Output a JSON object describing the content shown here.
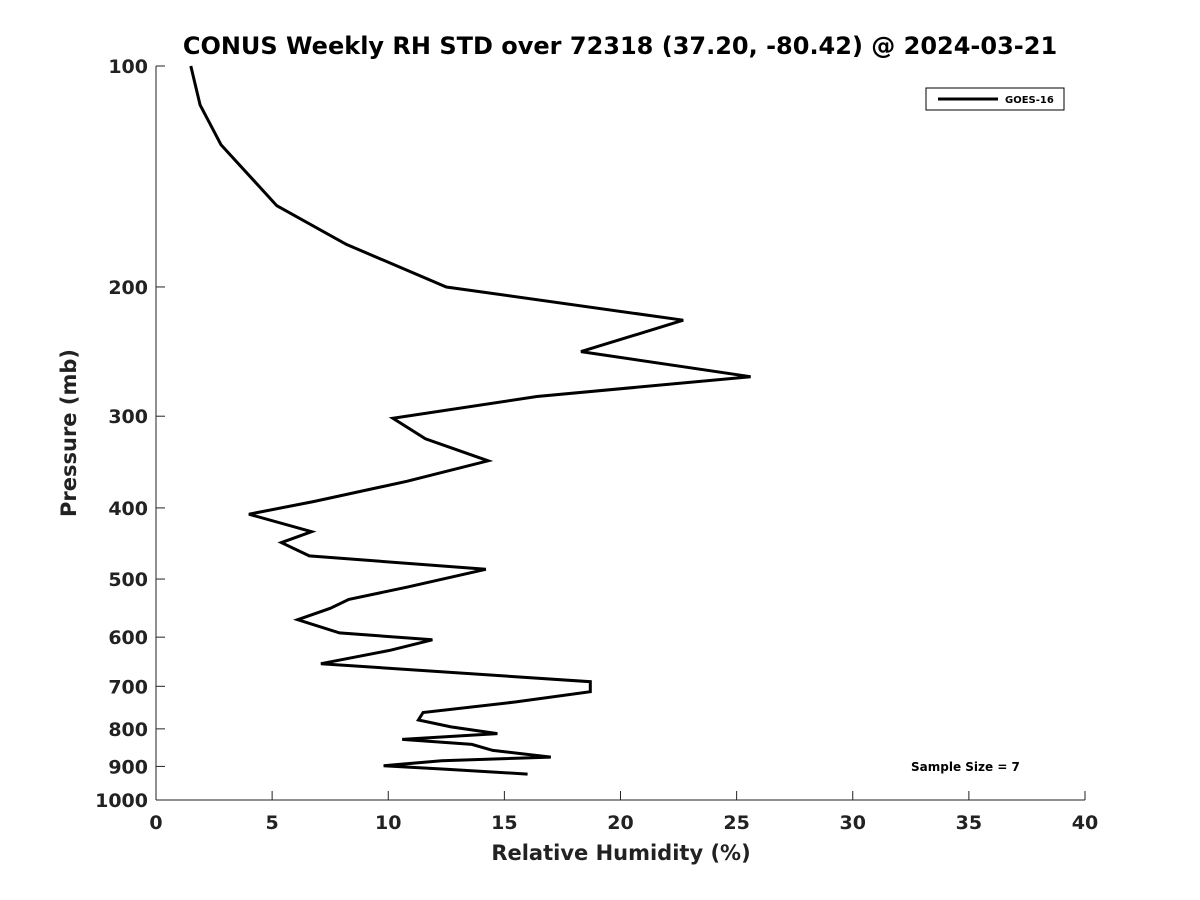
{
  "chart_data": {
    "type": "line",
    "title": "CONUS Weekly RH STD over 72318 (37.20, -80.42) @ 2024-03-21",
    "xlabel": "Relative Humidity (%)",
    "ylabel": "Pressure (mb)",
    "xlim": [
      0,
      40
    ],
    "ylim": [
      100,
      1000
    ],
    "y_scale": "log",
    "y_reversed": true,
    "x_ticks": [
      0,
      5,
      10,
      15,
      20,
      25,
      30,
      35,
      40
    ],
    "y_ticks": [
      100,
      200,
      300,
      400,
      500,
      600,
      700,
      800,
      900,
      1000
    ],
    "grid": false,
    "legend_position": "top-right",
    "series": [
      {
        "name": "GOES-16",
        "color": "#000000",
        "x": [
          1.5,
          1.9,
          2.8,
          5.2,
          8.2,
          12.5,
          22.7,
          18.3,
          25.6,
          16.4,
          10.2,
          11.6,
          14.3,
          10.8,
          6.8,
          4.0,
          6.7,
          5.4,
          6.6,
          14.2,
          10.8,
          8.3,
          7.5,
          6.1,
          7.9,
          11.9,
          10.1,
          7.1,
          18.7,
          18.7,
          15.5,
          11.5,
          11.3,
          12.7,
          14.7,
          10.6,
          13.6,
          14.5,
          17.0,
          12.3,
          9.8,
          12.5,
          16.0
        ],
        "y": [
          100,
          113,
          128,
          155,
          175,
          200,
          222,
          245,
          265,
          282,
          302,
          322,
          345,
          368,
          392,
          408,
          431,
          446,
          465,
          485,
          513,
          533,
          548,
          568,
          592,
          605,
          625,
          652,
          690,
          712,
          735,
          760,
          778,
          795,
          812,
          827,
          840,
          856,
          874,
          884,
          898,
          908,
          922
        ]
      }
    ],
    "annotations": [
      "Sample Size = 7"
    ]
  }
}
